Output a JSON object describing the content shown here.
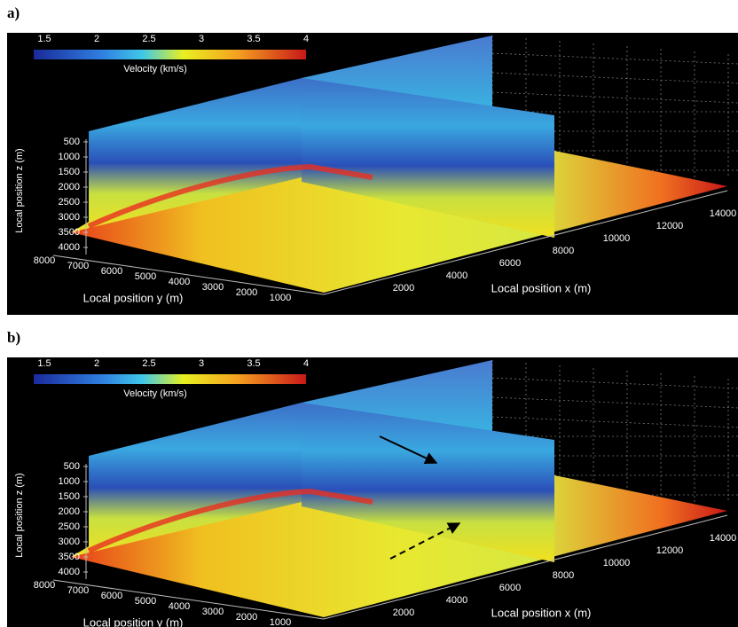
{
  "panels": [
    {
      "label": "a)",
      "colorbar": {
        "ticks": [
          "1.5",
          "2",
          "2.5",
          "3",
          "3.5",
          "4"
        ],
        "label": "Velocity (km/s)"
      },
      "z_axis": {
        "label": "Local position z (m)",
        "ticks": [
          "500",
          "1000",
          "1500",
          "2000",
          "2500",
          "3000",
          "3500",
          "4000"
        ]
      },
      "y_axis": {
        "label": "Local position y (m)",
        "ticks": [
          "8000",
          "7000",
          "6000",
          "5000",
          "4000",
          "3000",
          "2000",
          "1000"
        ]
      },
      "x_axis": {
        "label": "Local position x (m)",
        "ticks": [
          "2000",
          "4000",
          "6000",
          "8000",
          "10000",
          "12000",
          "14000"
        ]
      }
    },
    {
      "label": "b)",
      "colorbar": {
        "ticks": [
          "1.5",
          "2",
          "2.5",
          "3",
          "3.5",
          "4"
        ],
        "label": "Velocity (km/s)"
      },
      "z_axis": {
        "label": "Local position z (m)",
        "ticks": [
          "500",
          "1000",
          "1500",
          "2000",
          "2500",
          "3000",
          "3500",
          "4000"
        ]
      },
      "y_axis": {
        "label": "Local position y (m)",
        "ticks": [
          "8000",
          "7000",
          "6000",
          "5000",
          "4000",
          "3000",
          "2000",
          "1000"
        ]
      },
      "x_axis": {
        "label": "Local position x (m)",
        "ticks": [
          "2000",
          "4000",
          "6000",
          "8000",
          "10000",
          "12000",
          "14000"
        ]
      }
    }
  ]
}
